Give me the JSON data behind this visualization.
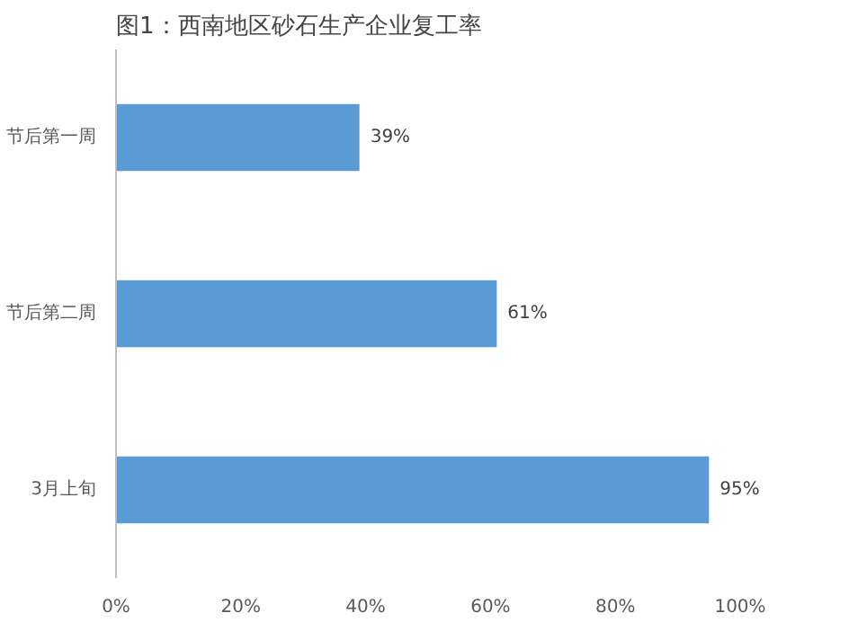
{
  "chart_data": {
    "type": "bar",
    "orientation": "horizontal",
    "title": "图1：西南地区砂石生产企业复工率",
    "categories": [
      "节后第一周",
      "节后第二周",
      "3月上旬"
    ],
    "values": [
      39,
      61,
      95
    ],
    "value_labels": [
      "39%",
      "61%",
      "95%"
    ],
    "color": "#5b9bd5",
    "xlim": [
      0,
      100
    ],
    "xticks": [
      {
        "value": 0,
        "label": "0%"
      },
      {
        "value": 20,
        "label": "20%"
      },
      {
        "value": 40,
        "label": "40%"
      },
      {
        "value": 60,
        "label": "60%"
      },
      {
        "value": 80,
        "label": "80%"
      },
      {
        "value": 100,
        "label": "100%"
      }
    ],
    "grid": false
  }
}
